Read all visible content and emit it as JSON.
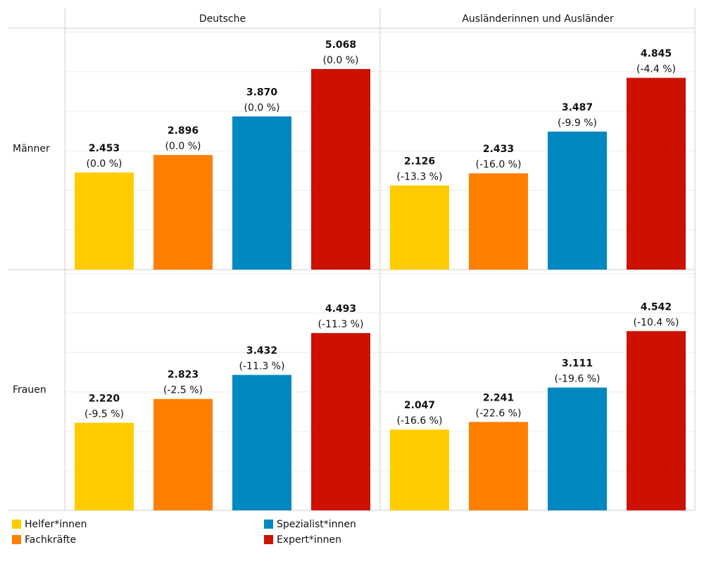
{
  "chart_data": {
    "type": "bar",
    "columns": [
      "Deutsche",
      "Ausländerinnen und Ausländer"
    ],
    "series": [
      {
        "name": "Helfer*innen",
        "color": "#ffcc00"
      },
      {
        "name": "Fachkräfte",
        "color": "#ff8000"
      },
      {
        "name": "Spezialist*innen",
        "color": "#0088c0"
      },
      {
        "name": "Expert*innen",
        "color": "#cc1100"
      }
    ],
    "rows": [
      {
        "name": "Männer",
        "panels": [
          {
            "values": [
              2453,
              2896,
              3870,
              5068
            ],
            "value_labels": [
              "2.453",
              "2.896",
              "3.870",
              "5.068"
            ],
            "changes": [
              0.0,
              0.0,
              0.0,
              0.0
            ],
            "change_labels": [
              "(0.0 %)",
              "(0.0 %)",
              "(0.0 %)",
              "(0.0 %)"
            ]
          },
          {
            "values": [
              2126,
              2433,
              3487,
              4845
            ],
            "value_labels": [
              "2.126",
              "2.433",
              "3.487",
              "4.845"
            ],
            "changes": [
              -13.3,
              -16.0,
              -9.9,
              -4.4
            ],
            "change_labels": [
              "(-13.3 %)",
              "(-16.0 %)",
              "(-9.9 %)",
              "(-4.4 %)"
            ]
          }
        ]
      },
      {
        "name": "Frauen",
        "panels": [
          {
            "values": [
              2220,
              2823,
              3432,
              4493
            ],
            "value_labels": [
              "2.220",
              "2.823",
              "3.432",
              "4.493"
            ],
            "changes": [
              -9.5,
              -2.5,
              -11.3,
              -11.3
            ],
            "change_labels": [
              "(-9.5 %)",
              "(-2.5 %)",
              "(-11.3 %)",
              "(-11.3 %)"
            ]
          },
          {
            "values": [
              2047,
              2241,
              3111,
              4542
            ],
            "value_labels": [
              "2.047",
              "2.241",
              "3.111",
              "4.542"
            ],
            "changes": [
              -16.6,
              -22.6,
              -19.6,
              -10.4
            ],
            "change_labels": [
              "(-16.6 %)",
              "(-22.6 %)",
              "(-19.6 %)",
              "(-10.4 %)"
            ]
          }
        ]
      }
    ],
    "ylim": [
      0,
      6100
    ],
    "yticks": [
      0,
      1000,
      2000,
      3000,
      4000,
      5000,
      6000
    ],
    "grid": true
  }
}
